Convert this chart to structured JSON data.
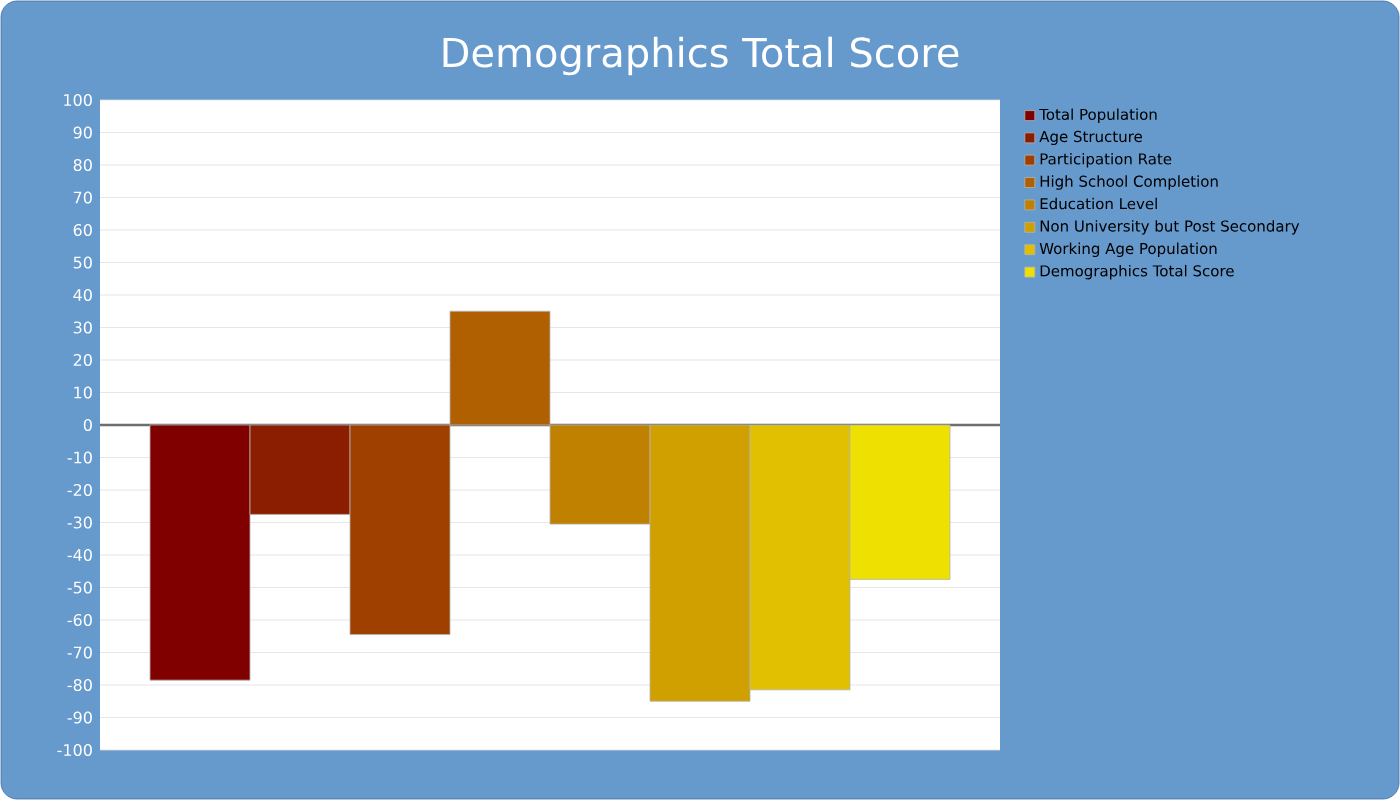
{
  "chart_data": {
    "type": "bar",
    "title": "Demographics Total Score",
    "categories": [
      null
    ],
    "series": [
      {
        "name": "Total Population",
        "color": "#800000",
        "values": [
          -78.5
        ]
      },
      {
        "name": "Age Structure",
        "color": "#8b1e00",
        "values": [
          -27.5
        ]
      },
      {
        "name": "Participation Rate",
        "color": "#a04000",
        "values": [
          -64.5
        ]
      },
      {
        "name": "High School Completion",
        "color": "#b06000",
        "values": [
          35
        ]
      },
      {
        "name": "Education Level",
        "color": "#c08000",
        "values": [
          -30.5
        ]
      },
      {
        "name": "Non University but Post Secondary",
        "color": "#d0a000",
        "values": [
          -85
        ]
      },
      {
        "name": "Working Age Population",
        "color": "#e0c000",
        "values": [
          -81.5
        ]
      },
      {
        "name": "Demographics Total Score",
        "color": "#eee000",
        "values": [
          -47.5
        ]
      }
    ],
    "ylim": [
      -100,
      100
    ],
    "yticks": [
      -100,
      -90,
      -80,
      -70,
      -60,
      -50,
      -40,
      -30,
      -20,
      -10,
      0,
      10,
      20,
      30,
      40,
      50,
      60,
      70,
      80,
      90,
      100
    ],
    "grid": "y",
    "legend": "top right"
  }
}
